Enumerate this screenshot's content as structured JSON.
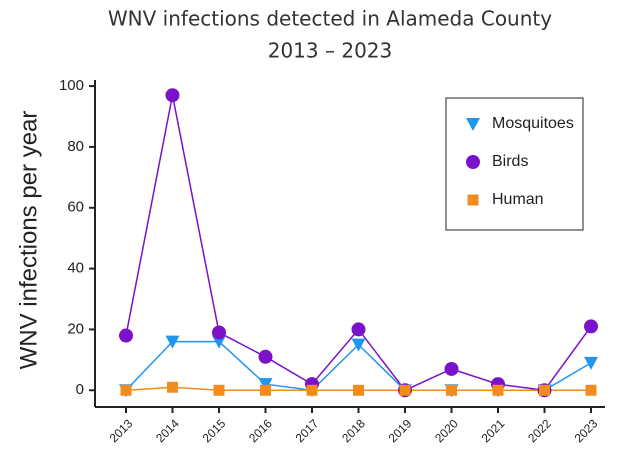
{
  "chart_data": {
    "type": "line",
    "title": "WNV infections detected in Alameda County",
    "subtitle": "2013 – 2023",
    "y_label": "WNV infections per year",
    "categories": [
      "2013",
      "2014",
      "2015",
      "2016",
      "2017",
      "2018",
      "2019",
      "2020",
      "2021",
      "2022",
      "2023"
    ],
    "series": [
      {
        "name": "Mosquitoes",
        "color": "#2196f0",
        "marker": "triangle-down",
        "values": [
          0,
          16,
          16,
          2,
          0,
          15,
          0,
          0,
          0,
          0,
          9
        ]
      },
      {
        "name": "Birds",
        "color": "#7a12c9",
        "marker": "circle",
        "values": [
          18,
          97,
          19,
          11,
          2,
          20,
          0,
          7,
          2,
          0,
          21
        ]
      },
      {
        "name": "Human",
        "color": "#f28c1c",
        "marker": "square",
        "values": [
          0,
          1,
          0,
          0,
          0,
          0,
          0,
          0,
          0,
          0,
          0
        ]
      }
    ],
    "ylim": [
      -5.5,
      102
    ],
    "yticks": [
      0,
      20,
      40,
      60,
      80,
      100
    ],
    "legend": "upper right",
    "grid": false
  }
}
